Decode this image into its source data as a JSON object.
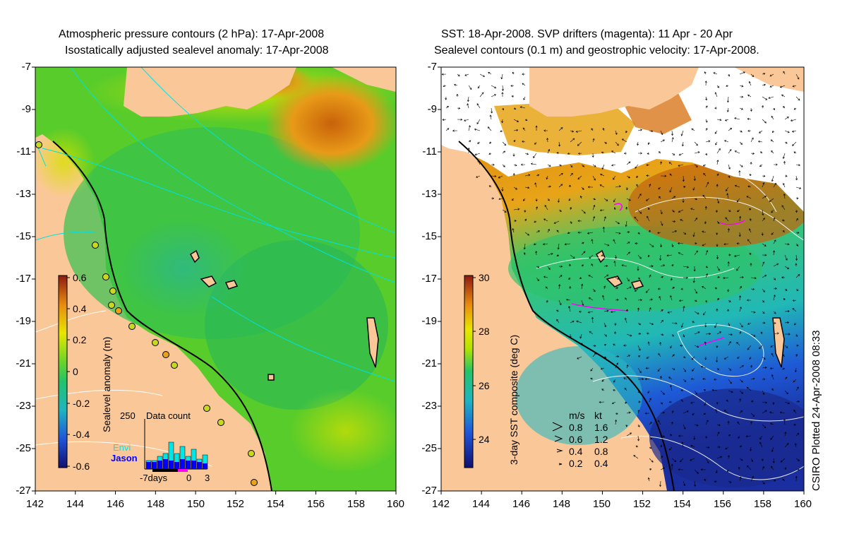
{
  "left_panel": {
    "title_line1": "Atmospheric pressure contours (2 hPa): 17-Apr-2008",
    "title_line2": "Isostatically adjusted sealevel anomaly: 17-Apr-2008",
    "colorbar_label": "Sealevel anomaly (m)",
    "colorbar_ticks": [
      "0.6",
      "0.4",
      "0.2",
      "0",
      "-0.2",
      "-0.4",
      "-0.6"
    ],
    "histogram": {
      "title": "Data count",
      "ymax_label": "250",
      "series_envi": "Envi",
      "series_jason": "Jason",
      "x_labels": [
        "-7days",
        "0",
        "3"
      ],
      "colors": {
        "envi": "#00e5e5",
        "jason": "#0000ff"
      }
    }
  },
  "right_panel": {
    "title_line1": "SST: 18-Apr-2008. SVP drifters (magenta): 11 Apr - 20 Apr",
    "title_line2": "Sealevel contours (0.1 m) and geostrophic velocity: 17-Apr-2008.",
    "colorbar_label": "3-day SST composite (deg C)",
    "colorbar_ticks": [
      "30",
      "28",
      "26",
      "24"
    ],
    "velocity_legend": {
      "header_ms": "m/s",
      "header_kt": "kt",
      "rows": [
        {
          "ms": "0.8",
          "kt": "1.6"
        },
        {
          "ms": "0.6",
          "kt": "1.2"
        },
        {
          "ms": "0.4",
          "kt": "0.8"
        },
        {
          "ms": "0.2",
          "kt": "0.4"
        }
      ]
    }
  },
  "axes": {
    "x_ticks": [
      "142",
      "144",
      "146",
      "148",
      "150",
      "152",
      "154",
      "156",
      "158",
      "160"
    ],
    "y_ticks": [
      "-7",
      "-9",
      "-11",
      "-13",
      "-15",
      "-17",
      "-19",
      "-21",
      "-23",
      "-25",
      "-27"
    ]
  },
  "credit": "CSIRO Plotted 24-Apr-2008 08:33",
  "colors": {
    "land": "#fac898",
    "cloud": "#ffffff",
    "pressure_contour": "#00e0e0"
  }
}
